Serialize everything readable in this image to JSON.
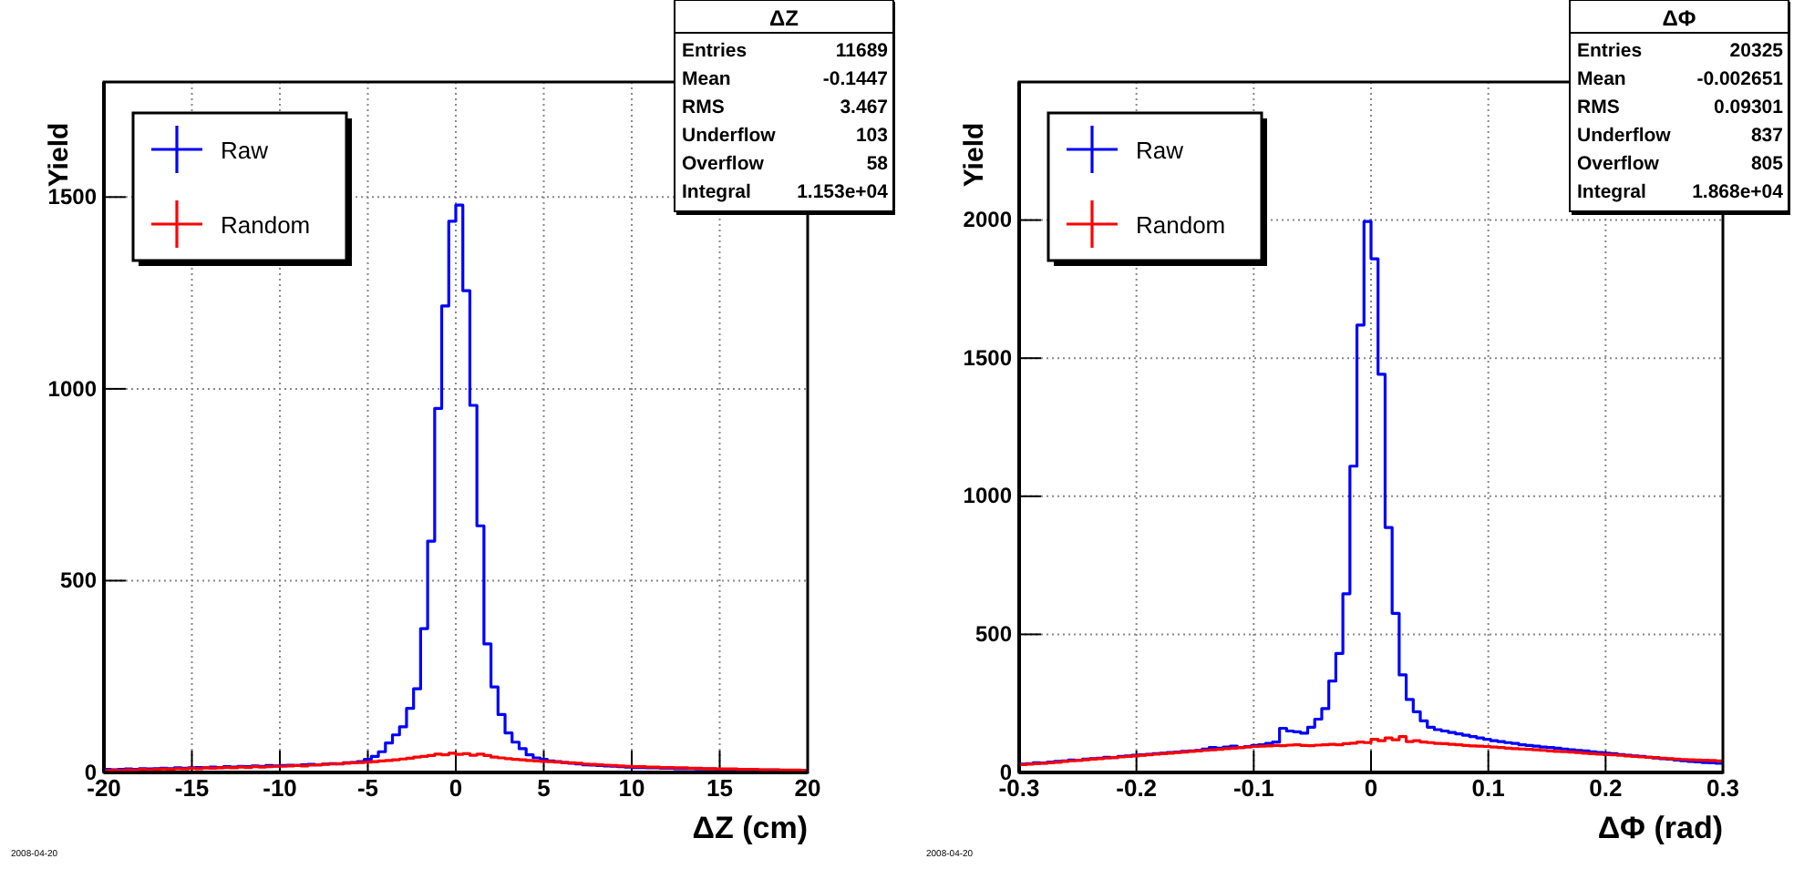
{
  "chart_data": [
    {
      "type": "histogram",
      "title": "ΔZ",
      "xlabel": "ΔZ (cm)",
      "ylabel": "Yield",
      "xlim": [
        -20,
        20
      ],
      "ylim": [
        0,
        1800
      ],
      "xticks": [
        -20,
        -15,
        -10,
        -5,
        0,
        5,
        10,
        15,
        20
      ],
      "yticks": [
        0,
        500,
        1000,
        1500
      ],
      "grid": true,
      "legend": "top left",
      "bins": [
        -20,
        -19.6,
        -19.2,
        -18.8,
        -18.4,
        -18,
        -17.6,
        -17.2,
        -16.8,
        -16.4,
        -16,
        -15.6,
        -15.2,
        -14.8,
        -14.4,
        -14,
        -13.6,
        -13.2,
        -12.8,
        -12.4,
        -12,
        -11.6,
        -11.2,
        -10.8,
        -10.4,
        -10,
        -9.6,
        -9.2,
        -8.8,
        -8.4,
        -8,
        -7.6,
        -7.2,
        -6.8,
        -6.4,
        -6,
        -5.6,
        -5.2,
        -4.8,
        -4.4,
        -4,
        -3.6,
        -3.2,
        -2.8,
        -2.4,
        -2,
        -1.6,
        -1.2,
        -0.8,
        -0.4,
        0,
        0.4,
        0.8,
        1.2,
        1.6,
        2,
        2.4,
        2.8,
        3.2,
        3.6,
        4,
        4.4,
        4.8,
        5.2,
        5.6,
        6,
        6.4,
        6.8,
        7.2,
        7.6,
        8,
        8.4,
        8.8,
        9.2,
        9.6,
        10,
        10.4,
        10.8,
        11.2,
        11.6,
        12,
        12.4,
        12.8,
        13.2,
        13.6,
        14,
        14.4,
        14.8,
        15.2,
        15.6,
        16,
        16.4,
        16.8,
        17.2,
        17.6,
        18,
        18.4,
        18.8,
        19.2,
        19.6,
        20
      ],
      "series": [
        {
          "name": "Raw",
          "color": "#0000ff",
          "values": [
            8,
            7,
            8,
            9,
            8,
            10,
            9,
            10,
            11,
            10,
            12,
            11,
            12,
            13,
            12,
            14,
            13,
            15,
            14,
            16,
            15,
            17,
            16,
            18,
            17,
            18,
            19,
            18,
            20,
            21,
            20,
            22,
            23,
            22,
            25,
            26,
            28,
            34,
            42,
            54,
            77,
            98,
            119,
            167,
            218,
            375,
            603,
            949,
            1216,
            1437,
            1479,
            1256,
            957,
            643,
            335,
            223,
            151,
            103,
            79,
            62,
            46,
            38,
            34,
            30,
            28,
            26,
            24,
            22,
            20,
            19,
            18,
            17,
            16,
            15,
            14,
            13,
            13,
            12,
            12,
            11,
            11,
            10,
            10,
            10,
            9,
            9,
            9,
            8,
            8,
            8,
            7,
            7,
            7,
            6,
            6,
            6,
            5,
            5,
            5,
            5
          ]
        },
        {
          "name": "Random",
          "color": "#ff0000",
          "values": [
            5,
            6,
            5,
            7,
            6,
            8,
            7,
            8,
            9,
            8,
            10,
            9,
            11,
            10,
            12,
            11,
            12,
            13,
            12,
            14,
            13,
            15,
            14,
            15,
            16,
            16,
            17,
            18,
            17,
            19,
            20,
            21,
            22,
            23,
            24,
            25,
            26,
            27,
            28,
            30,
            31,
            33,
            35,
            37,
            40,
            42,
            44,
            48,
            46,
            50,
            47,
            49,
            45,
            48,
            44,
            40,
            38,
            36,
            34,
            33,
            31,
            30,
            29,
            28,
            27,
            26,
            25,
            24,
            22,
            21,
            20,
            19,
            18,
            17,
            16,
            15,
            15,
            14,
            14,
            13,
            13,
            12,
            12,
            11,
            11,
            10,
            10,
            9,
            9,
            9,
            8,
            8,
            8,
            7,
            7,
            7,
            6,
            6,
            6,
            5
          ]
        }
      ],
      "annotations": [
        "Entries",
        "11689",
        "Mean",
        "-0.1447",
        "RMS",
        "3.467",
        "Underflow",
        "103",
        "Overflow",
        "58",
        "Integral",
        "1.153e+04",
        "2008-04-20"
      ]
    },
    {
      "type": "histogram",
      "title": "ΔΦ",
      "xlabel": "ΔΦ (rad)",
      "ylabel": "Yield",
      "xlim": [
        -0.3,
        0.3
      ],
      "ylim": [
        0,
        2500
      ],
      "xticks": [
        -0.3,
        -0.2,
        -0.1,
        0,
        0.1,
        0.2,
        0.3
      ],
      "yticks": [
        0,
        500,
        1000,
        1500,
        2000
      ],
      "grid": true,
      "legend": "top left",
      "bins": [
        -0.3,
        -0.294,
        -0.288,
        -0.282,
        -0.276,
        -0.27,
        -0.264,
        -0.258,
        -0.252,
        -0.246,
        -0.24,
        -0.234,
        -0.228,
        -0.222,
        -0.216,
        -0.21,
        -0.204,
        -0.198,
        -0.192,
        -0.186,
        -0.18,
        -0.174,
        -0.168,
        -0.162,
        -0.156,
        -0.15,
        -0.144,
        -0.138,
        -0.132,
        -0.126,
        -0.12,
        -0.114,
        -0.108,
        -0.102,
        -0.096,
        -0.09,
        -0.084,
        -0.078,
        -0.072,
        -0.066,
        -0.06,
        -0.054,
        -0.048,
        -0.042,
        -0.036,
        -0.03,
        -0.024,
        -0.018,
        -0.012,
        -0.006,
        0,
        0.006,
        0.012,
        0.018,
        0.024,
        0.03,
        0.036,
        0.042,
        0.048,
        0.054,
        0.06,
        0.066,
        0.072,
        0.078,
        0.084,
        0.09,
        0.096,
        0.102,
        0.108,
        0.114,
        0.12,
        0.126,
        0.132,
        0.138,
        0.144,
        0.15,
        0.156,
        0.162,
        0.168,
        0.174,
        0.18,
        0.186,
        0.192,
        0.198,
        0.204,
        0.21,
        0.216,
        0.222,
        0.228,
        0.234,
        0.24,
        0.246,
        0.252,
        0.258,
        0.264,
        0.27,
        0.276,
        0.282,
        0.288,
        0.294,
        0.3
      ],
      "series": [
        {
          "name": "Raw",
          "color": "#0000ff",
          "values": [
            30,
            32,
            35,
            34,
            38,
            40,
            42,
            45,
            44,
            48,
            50,
            52,
            55,
            54,
            58,
            60,
            62,
            64,
            66,
            68,
            70,
            72,
            74,
            76,
            78,
            80,
            85,
            90,
            88,
            92,
            95,
            90,
            94,
            98,
            100,
            105,
            110,
            160,
            150,
            147,
            142,
            164,
            193,
            231,
            331,
            431,
            647,
            1109,
            1620,
            1995,
            1860,
            1442,
            887,
            576,
            353,
            264,
            220,
            187,
            164,
            155,
            150,
            145,
            140,
            135,
            130,
            125,
            120,
            115,
            112,
            108,
            105,
            100,
            98,
            95,
            92,
            90,
            88,
            85,
            82,
            80,
            78,
            75,
            72,
            70,
            68,
            65,
            62,
            60,
            58,
            55,
            52,
            50,
            48,
            45,
            42,
            40,
            38,
            36,
            35,
            33
          ]
        },
        {
          "name": "Random",
          "color": "#ff0000",
          "values": [
            28,
            30,
            32,
            33,
            35,
            37,
            40,
            42,
            44,
            46,
            48,
            50,
            52,
            54,
            56,
            58,
            60,
            62,
            64,
            66,
            68,
            70,
            72,
            74,
            76,
            78,
            80,
            82,
            84,
            86,
            88,
            90,
            92,
            94,
            95,
            96,
            98,
            97,
            99,
            100,
            98,
            97,
            99,
            100,
            102,
            100,
            104,
            106,
            110,
            108,
            120,
            115,
            125,
            118,
            130,
            112,
            115,
            110,
            108,
            105,
            104,
            102,
            100,
            98,
            96,
            95,
            94,
            92,
            90,
            88,
            86,
            85,
            84,
            82,
            80,
            78,
            76,
            75,
            74,
            72,
            70,
            68,
            66,
            65,
            64,
            62,
            60,
            58,
            56,
            55,
            54,
            52,
            50,
            48,
            47,
            46,
            45,
            44,
            43,
            42
          ]
        }
      ],
      "annotations": [
        "Entries",
        "20325",
        "Mean",
        "-0.002651",
        "RMS",
        "0.09301",
        "Underflow",
        "837",
        "Overflow",
        "805",
        "Integral",
        "1.868e+04",
        "2008-04-20"
      ]
    }
  ]
}
